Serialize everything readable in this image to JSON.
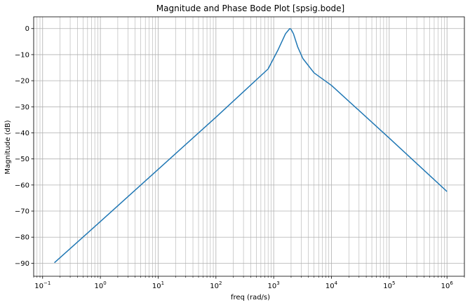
{
  "chart_data": {
    "type": "line",
    "title": "Magnitude and Phase Bode Plot [spsig.bode]",
    "xlabel": "freq (rad/s)",
    "ylabel": "Magnitude (dB)",
    "xscale": "log",
    "xlim": [
      0.07,
      2000000
    ],
    "ylim": [
      -95,
      4.5
    ],
    "grid": true,
    "grid_minor_x": true,
    "line_color": "#1f77b4",
    "x_ticks": [
      {
        "value": 0.1,
        "base": "10",
        "exp": "−1"
      },
      {
        "value": 1,
        "base": "10",
        "exp": "0"
      },
      {
        "value": 10,
        "base": "10",
        "exp": "1"
      },
      {
        "value": 100,
        "base": "10",
        "exp": "2"
      },
      {
        "value": 1000,
        "base": "10",
        "exp": "3"
      },
      {
        "value": 10000,
        "base": "10",
        "exp": "4"
      },
      {
        "value": 100000,
        "base": "10",
        "exp": "5"
      },
      {
        "value": 1000000,
        "base": "10",
        "exp": "6"
      }
    ],
    "y_ticks": [
      {
        "value": 0,
        "label": "0"
      },
      {
        "value": -10,
        "label": "−10"
      },
      {
        "value": -20,
        "label": "−20"
      },
      {
        "value": -30,
        "label": "−30"
      },
      {
        "value": -40,
        "label": "−40"
      },
      {
        "value": -50,
        "label": "−50"
      },
      {
        "value": -60,
        "label": "−60"
      },
      {
        "value": -70,
        "label": "−70"
      },
      {
        "value": -80,
        "label": "−80"
      },
      {
        "value": -90,
        "label": "−90"
      }
    ],
    "series": [
      {
        "x": [
          0.16,
          1,
          10,
          100,
          800,
          1200,
          1600,
          1900,
          2000,
          2200,
          2600,
          3200,
          5000,
          10000,
          100000,
          1000000
        ],
        "y": [
          -89.8,
          -74,
          -54,
          -34,
          -15.5,
          -8,
          -2,
          0,
          -0.3,
          -2,
          -7,
          -11.5,
          -17,
          -21.8,
          -42,
          -62.5
        ]
      }
    ]
  }
}
